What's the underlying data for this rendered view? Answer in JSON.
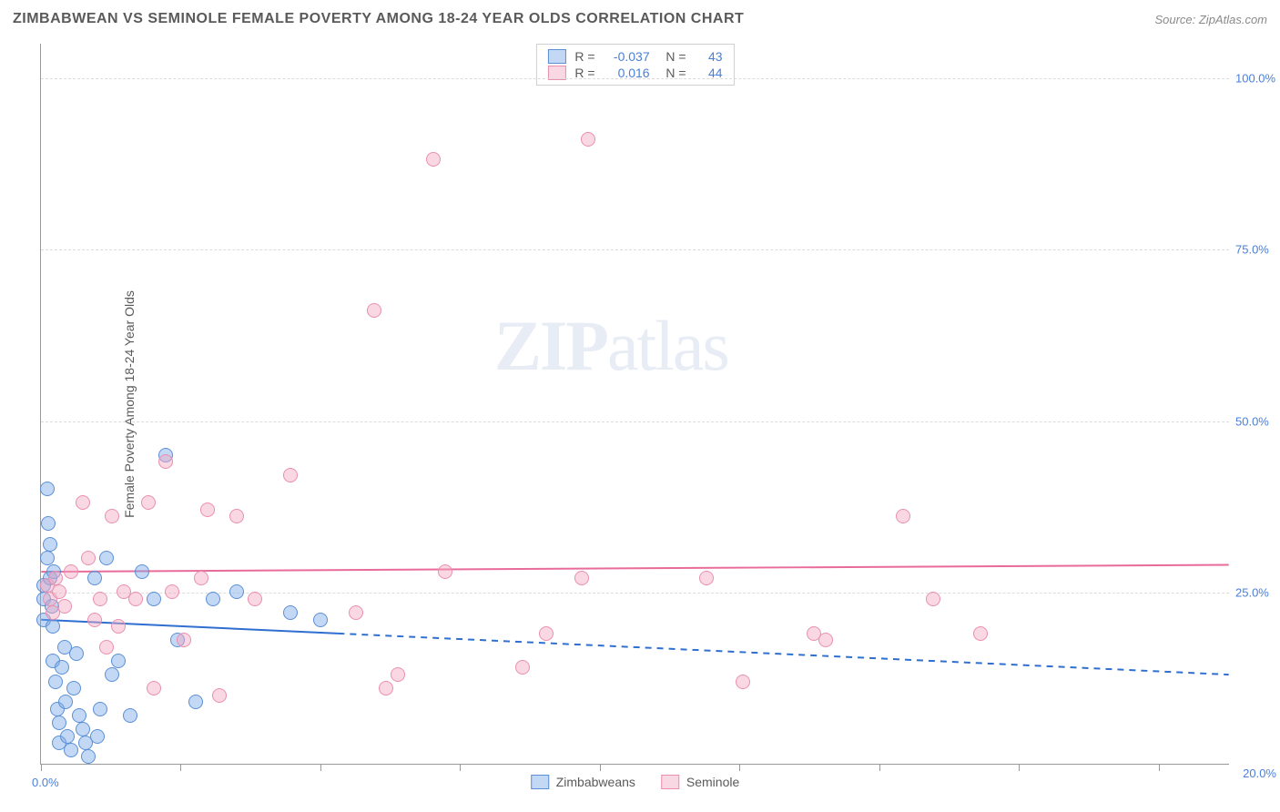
{
  "header": {
    "title": "ZIMBABWEAN VS SEMINOLE FEMALE POVERTY AMONG 18-24 YEAR OLDS CORRELATION CHART",
    "source": "Source: ZipAtlas.com"
  },
  "chart": {
    "type": "scatter",
    "y_axis_title": "Female Poverty Among 18-24 Year Olds",
    "xlim": [
      0,
      20
    ],
    "ylim": [
      0,
      105
    ],
    "x_tick_positions": [
      0,
      2.35,
      4.7,
      7.05,
      9.4,
      11.75,
      14.1,
      16.45,
      18.8
    ],
    "x_label_min": "0.0%",
    "x_label_max": "20.0%",
    "y_ticks": [
      {
        "v": 25,
        "label": "25.0%"
      },
      {
        "v": 50,
        "label": "50.0%"
      },
      {
        "v": 75,
        "label": "75.0%"
      },
      {
        "v": 100,
        "label": "100.0%"
      }
    ],
    "grid_color": "#dcdcdc",
    "background_color": "#ffffff",
    "watermark": {
      "bold": "ZIP",
      "rest": "atlas"
    },
    "marker_radius": 8,
    "marker_stroke_width": 1.2,
    "series": [
      {
        "name": "Zimbabweans",
        "fill": "rgba(122,168,230,0.45)",
        "stroke": "#5b8fd6",
        "r_value": "-0.037",
        "n_value": "43",
        "trend": {
          "y_start": 21,
          "y_end": 13,
          "color": "#2f6fd0",
          "dash_after_x": 5.0,
          "width": 2
        },
        "points": [
          [
            0.05,
            26
          ],
          [
            0.05,
            24
          ],
          [
            0.05,
            21
          ],
          [
            0.1,
            30
          ],
          [
            0.1,
            40
          ],
          [
            0.12,
            35
          ],
          [
            0.15,
            32
          ],
          [
            0.15,
            27
          ],
          [
            0.18,
            23
          ],
          [
            0.2,
            20
          ],
          [
            0.2,
            15
          ],
          [
            0.22,
            28
          ],
          [
            0.25,
            12
          ],
          [
            0.28,
            8
          ],
          [
            0.3,
            6
          ],
          [
            0.3,
            3
          ],
          [
            0.35,
            14
          ],
          [
            0.4,
            17
          ],
          [
            0.42,
            9
          ],
          [
            0.45,
            4
          ],
          [
            0.5,
            2
          ],
          [
            0.55,
            11
          ],
          [
            0.6,
            16
          ],
          [
            0.65,
            7
          ],
          [
            0.7,
            5
          ],
          [
            0.75,
            3
          ],
          [
            0.8,
            1
          ],
          [
            0.9,
            27
          ],
          [
            0.95,
            4
          ],
          [
            1.0,
            8
          ],
          [
            1.1,
            30
          ],
          [
            1.2,
            13
          ],
          [
            1.3,
            15
          ],
          [
            1.5,
            7
          ],
          [
            1.7,
            28
          ],
          [
            1.9,
            24
          ],
          [
            2.1,
            45
          ],
          [
            2.3,
            18
          ],
          [
            2.6,
            9
          ],
          [
            2.9,
            24
          ],
          [
            3.3,
            25
          ],
          [
            4.2,
            22
          ],
          [
            4.7,
            21
          ]
        ]
      },
      {
        "name": "Seminole",
        "fill": "rgba(244,168,192,0.45)",
        "stroke": "#e98fb0",
        "r_value": "0.016",
        "n_value": "44",
        "trend": {
          "y_start": 28,
          "y_end": 29,
          "color": "#e86b9a",
          "width": 2
        },
        "points": [
          [
            0.1,
            26
          ],
          [
            0.15,
            24
          ],
          [
            0.2,
            22
          ],
          [
            0.25,
            27
          ],
          [
            0.3,
            25
          ],
          [
            0.4,
            23
          ],
          [
            0.5,
            28
          ],
          [
            0.7,
            38
          ],
          [
            0.8,
            30
          ],
          [
            0.9,
            21
          ],
          [
            1.0,
            24
          ],
          [
            1.1,
            17
          ],
          [
            1.2,
            36
          ],
          [
            1.3,
            20
          ],
          [
            1.4,
            25
          ],
          [
            1.6,
            24
          ],
          [
            1.8,
            38
          ],
          [
            1.9,
            11
          ],
          [
            2.1,
            44
          ],
          [
            2.2,
            25
          ],
          [
            2.4,
            18
          ],
          [
            2.7,
            27
          ],
          [
            2.8,
            37
          ],
          [
            3.0,
            10
          ],
          [
            3.3,
            36
          ],
          [
            3.6,
            24
          ],
          [
            4.2,
            42
          ],
          [
            5.3,
            22
          ],
          [
            5.6,
            66
          ],
          [
            5.8,
            11
          ],
          [
            6.0,
            13
          ],
          [
            6.6,
            88
          ],
          [
            6.8,
            28
          ],
          [
            8.1,
            14
          ],
          [
            8.5,
            19
          ],
          [
            9.1,
            27
          ],
          [
            9.2,
            91
          ],
          [
            11.2,
            27
          ],
          [
            11.8,
            12
          ],
          [
            13.0,
            19
          ],
          [
            13.2,
            18
          ],
          [
            14.5,
            36
          ],
          [
            15.0,
            24
          ],
          [
            15.8,
            19
          ]
        ]
      }
    ],
    "bottom_legend": [
      {
        "label": "Zimbabweans",
        "fill": "rgba(122,168,230,0.45)",
        "stroke": "#5b8fd6"
      },
      {
        "label": "Seminole",
        "fill": "rgba(244,168,192,0.45)",
        "stroke": "#e98fb0"
      }
    ]
  }
}
